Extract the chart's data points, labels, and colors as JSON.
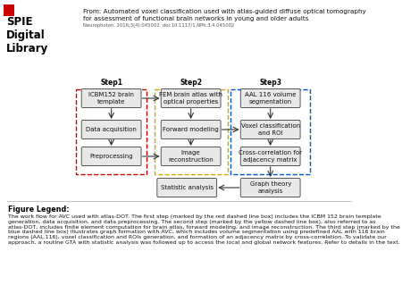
{
  "title_line1": "From: Automated voxel classification used with atlas-guided diffuse optical tomography",
  "title_line2": "for assessment of functional brain networks in young and older adults",
  "subtitle": "Neurophoton. 2016;3(4):045002. doi:10.1117/1.NPh.3.4.045002",
  "spie_text": "SPIE\nDigital\nLibrary",
  "figure_legend_title": "Figure Legend:",
  "figure_legend_text": "The work flow for AVC used with atlas-DOT. The first step (marked by the red dashed line box) includes the ICBM 152 brain template generation, data acquisition, and data preprocessing. The second step (marked by the yellow dashed line box), also referred to as atlas-DOT, includes finite element computation for brain atlas, forward modeling, and image reconstruction. The third step (marked by the blue dashed line box) illustrates graph formation with AVC, which includes volume segmentation using predefined AAL with 116 brain regions (AAL 116), voxel classification and ROIs generation, and formation of an adjacency matrix by cross-correlation. To validate our approach, a routine GTA with statistic analysis was followed up to access the local and global network features. Refer to details in the text.",
  "step1_label": "Step1",
  "step2_label": "Step2",
  "step3_label": "Step3",
  "boxes": {
    "icbm": "ICBM152 brain\ntemplate",
    "data_acq": "Data acquisition",
    "preproc": "Preprocessing",
    "fem": "FEM brain atlas with\noptical properties",
    "forward": "Forward modeling",
    "image_rec": "Image\nreconstruction",
    "aal": "AAL 116 volume\nsegmentation",
    "voxel": "Voxel classification\nand ROI",
    "crosscorr": "Cross-correlation for\nadjacency matrix",
    "statistic": "Statistic analysis",
    "graph": "Graph theory\nanalysis"
  },
  "bg_color": "#ffffff",
  "box_fill": "#e8e8e8",
  "box_edge": "#555555",
  "step1_dash_color": "#cc0000",
  "step2_dash_color": "#ccaa00",
  "step3_dash_color": "#0055cc",
  "arrow_color": "#333333"
}
